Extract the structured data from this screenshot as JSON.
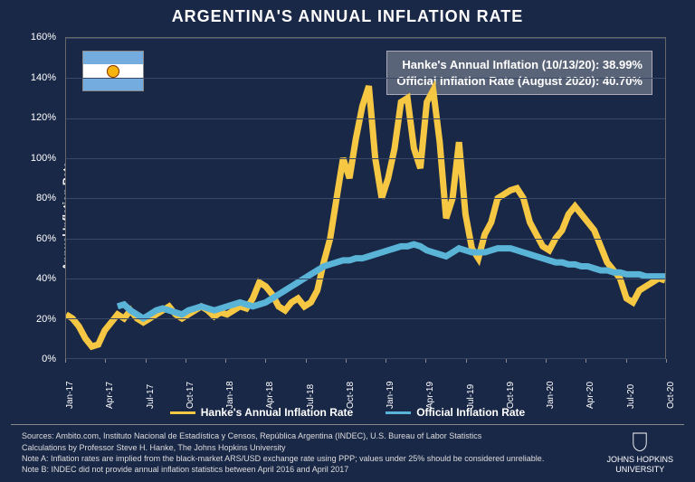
{
  "title": "ARGENTINA'S ANNUAL INFLATION RATE",
  "chart": {
    "type": "line",
    "background_color": "#1a2847",
    "grid_color": "#3a4867",
    "axis_color": "#666666",
    "text_color": "#ffffff",
    "title_fontsize": 18,
    "label_fontsize": 12,
    "tick_fontsize": 11,
    "y_axis_label": "Annual Inflation Rate",
    "ylim": [
      0,
      160
    ],
    "ytick_step": 20,
    "y_ticks": [
      "0%",
      "20%",
      "40%",
      "60%",
      "80%",
      "100%",
      "120%",
      "140%",
      "160%"
    ],
    "x_ticks": [
      "Jan-17",
      "Apr-17",
      "Jul-17",
      "Oct-17",
      "Jan-18",
      "Apr-18",
      "Jul-18",
      "Oct-18",
      "Jan-19",
      "Apr-19",
      "Jul-19",
      "Oct-19",
      "Jan-20",
      "Apr-20",
      "Jul-20",
      "Oct-20"
    ],
    "series_hanke": {
      "label": "Hanke's Annual Inflation Rate",
      "color": "#f5c742",
      "line_width": 2,
      "y": [
        22,
        20,
        16,
        10,
        6,
        7,
        14,
        18,
        22,
        20,
        24,
        20,
        18,
        20,
        22,
        24,
        26,
        22,
        20,
        22,
        24,
        26,
        24,
        21,
        23,
        22,
        24,
        26,
        25,
        30,
        38,
        36,
        32,
        26,
        24,
        28,
        30,
        26,
        28,
        34,
        48,
        60,
        80,
        100,
        90,
        110,
        126,
        136,
        100,
        80,
        90,
        105,
        128,
        130,
        105,
        95,
        128,
        134,
        108,
        70,
        80,
        108,
        72,
        55,
        50,
        62,
        68,
        80,
        82,
        84,
        85,
        80,
        68,
        62,
        56,
        54,
        60,
        64,
        72,
        76,
        72,
        68,
        64,
        56,
        48,
        44,
        40,
        30,
        28,
        34,
        36,
        38,
        40,
        39
      ]
    },
    "series_official": {
      "label": "Official Inflation Rate",
      "color": "#5ab4d8",
      "line_width": 2,
      "y": [
        null,
        null,
        null,
        null,
        null,
        null,
        null,
        null,
        26,
        27,
        24,
        22,
        20,
        22,
        24,
        25,
        24,
        23,
        22,
        24,
        25,
        26,
        25,
        24,
        25,
        26,
        27,
        28,
        27,
        26,
        27,
        28,
        30,
        32,
        34,
        36,
        38,
        40,
        42,
        44,
        46,
        47,
        48,
        49,
        49,
        50,
        50,
        51,
        52,
        53,
        54,
        55,
        56,
        56,
        57,
        56,
        54,
        53,
        52,
        51,
        53,
        55,
        54,
        53,
        53,
        53,
        54,
        55,
        55,
        55,
        54,
        53,
        52,
        51,
        50,
        49,
        48,
        48,
        47,
        47,
        46,
        46,
        45,
        44,
        44,
        43,
        43,
        42,
        42,
        42,
        41,
        41,
        41,
        41
      ]
    }
  },
  "callout": {
    "line1": "Hanke's Annual Inflation (10/13/20): 38.99%",
    "line2": "Official Inflation Rate (August 2020): 40.70%",
    "background_color": "#5a6478",
    "border_color": "#aabbcc",
    "text_color": "#ffffff",
    "fontsize": 13
  },
  "flag": {
    "country": "Argentina",
    "stripe_color": "#74acdf",
    "mid_color": "#ffffff",
    "sun_color": "#f6b40e"
  },
  "legend": {
    "items": [
      {
        "label": "Hanke's Annual Inflation Rate",
        "color": "#f5c742"
      },
      {
        "label": "Official Inflation Rate",
        "color": "#5ab4d8"
      }
    ],
    "fontsize": 12
  },
  "footer": {
    "line1": "Sources: Ambito.com, Instituto Nacional de Estadística y Censos, República Argentina (INDEC), U.S. Bureau of Labor Statistics",
    "line2": "Calculations by Professor Steve H. Hanke, The Johns Hopkins University",
    "line3": "Note A: Inflation rates are implied from the black-market ARS/USD exchange rate using PPP; values under 25% should be considered unreliable.",
    "line4": "Note B: INDEC did not provide annual inflation statistics between April 2016 and April 2017",
    "logo_text_top": "JOHNS HOPKINS",
    "logo_text_bottom": "UNIVERSITY",
    "fontsize": 9,
    "text_color": "#dddddd"
  }
}
